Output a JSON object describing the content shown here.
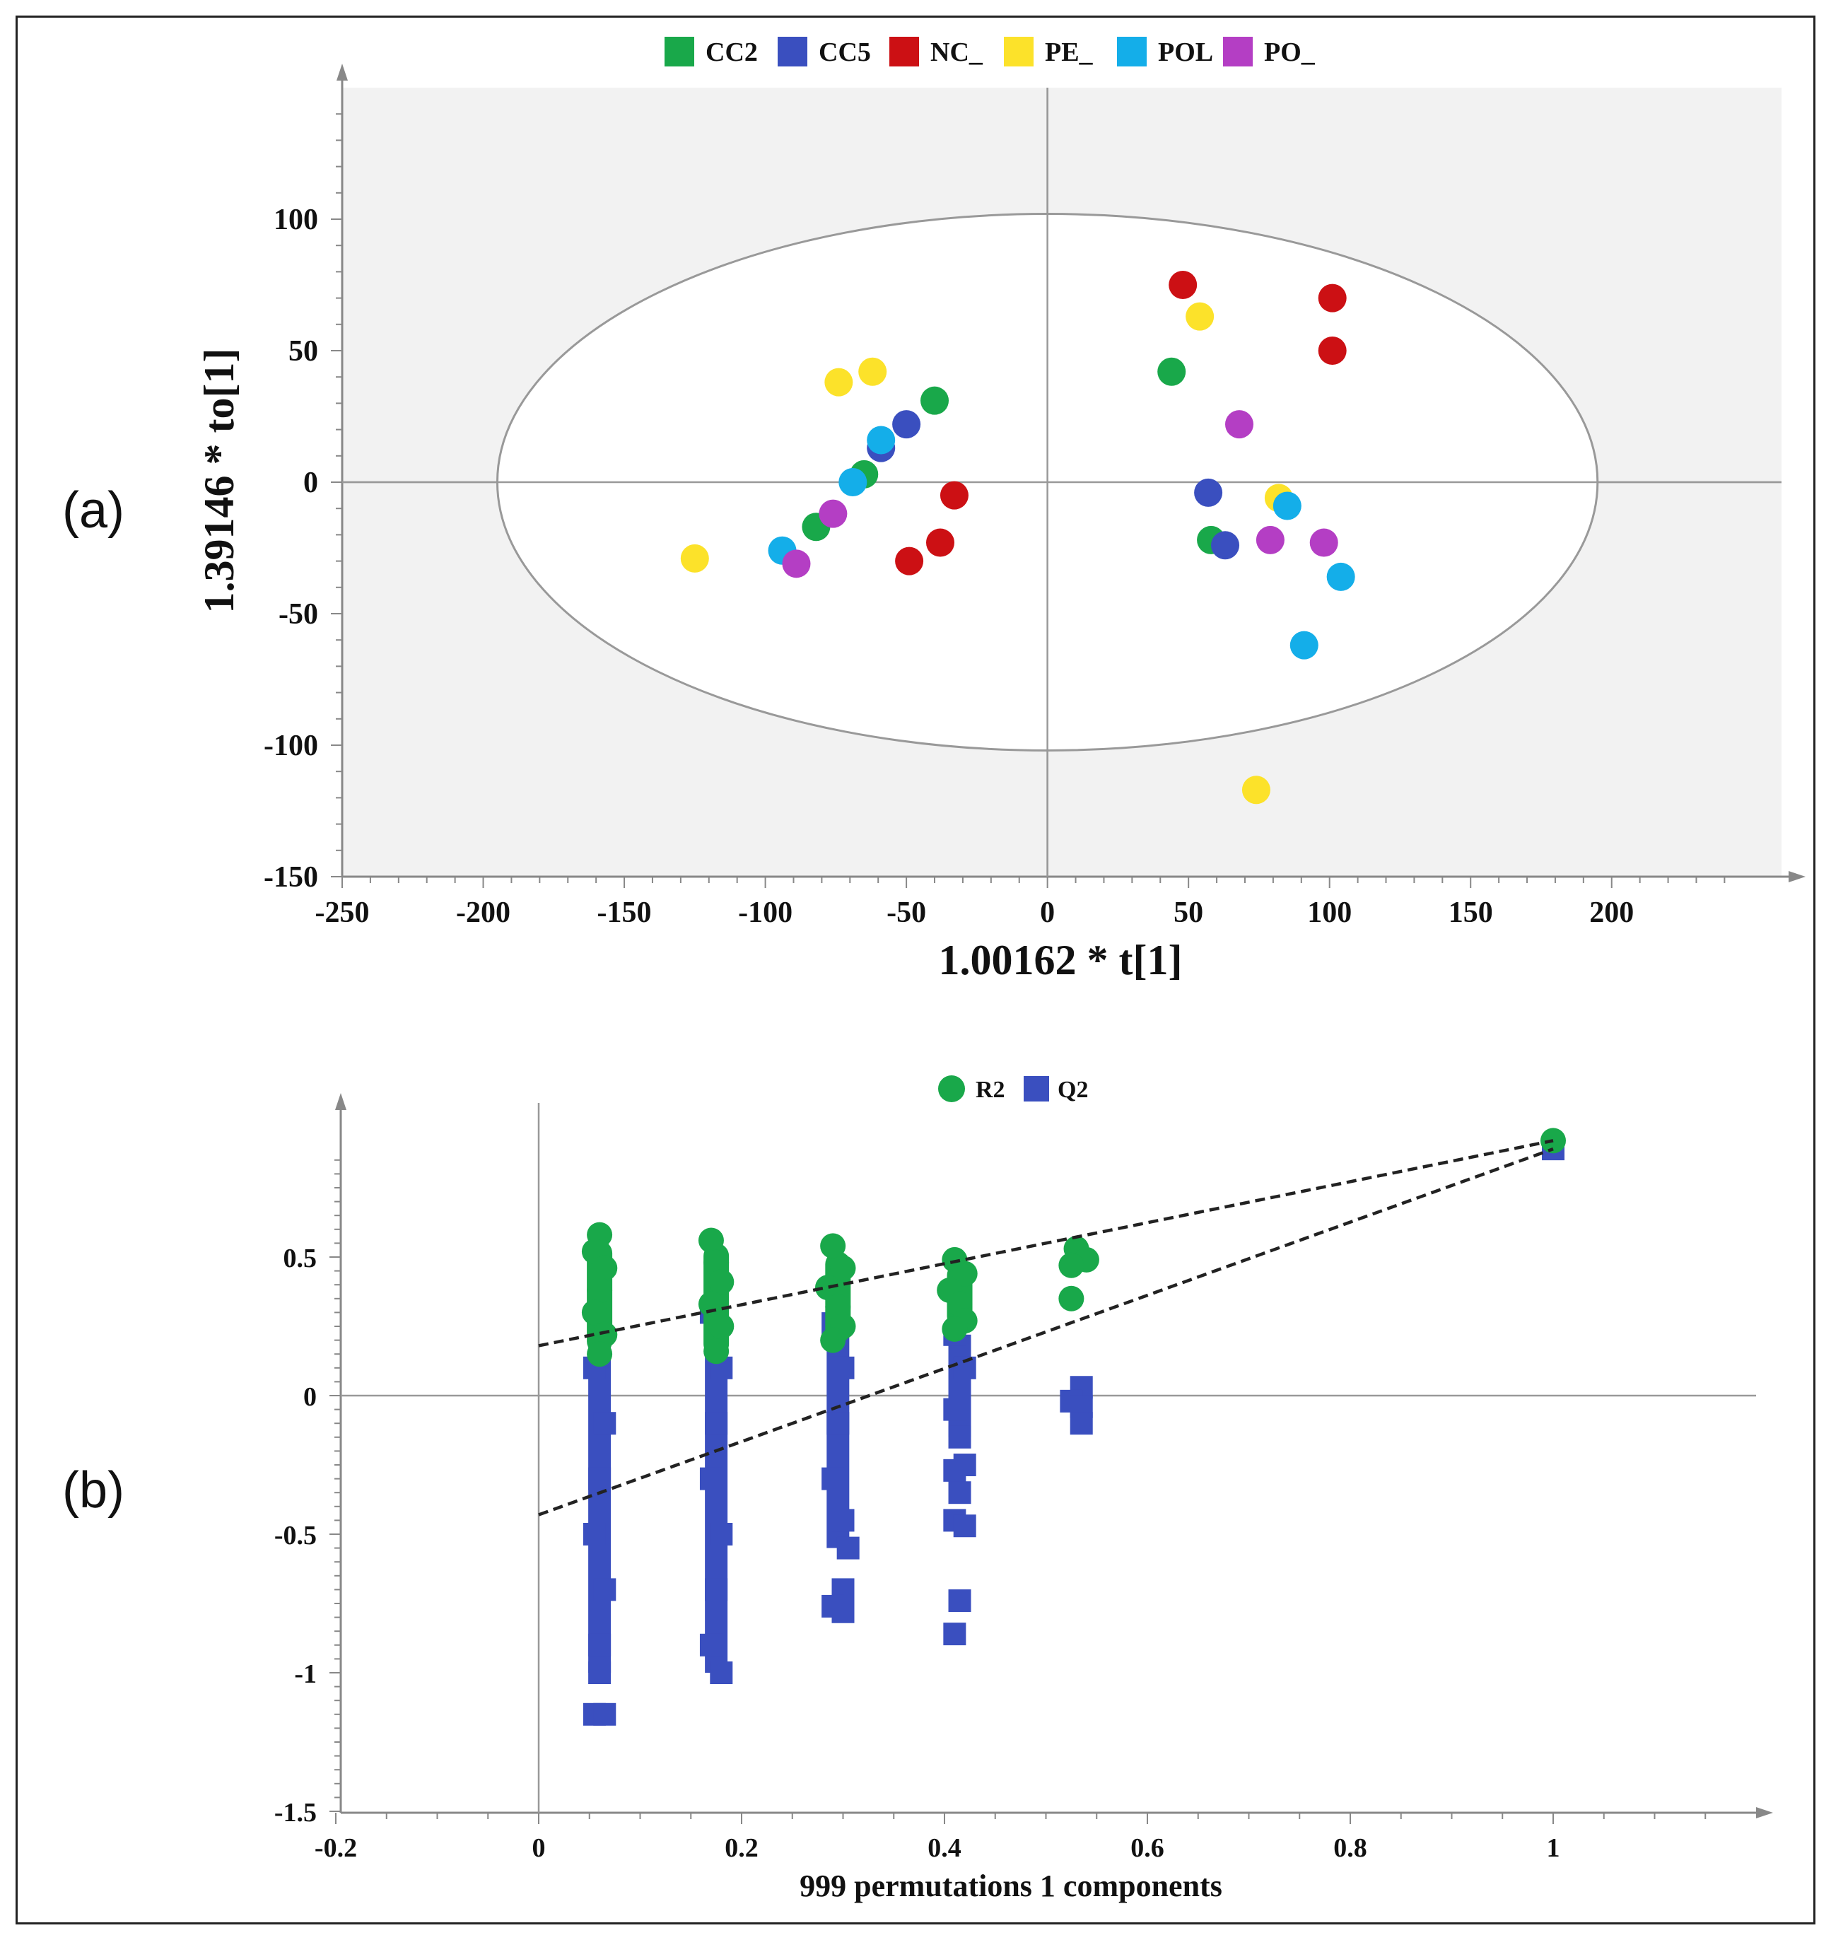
{
  "chart_data": [
    {
      "type": "scatter",
      "panel_label": "(a)",
      "xlabel": "1.00162 * t[1]",
      "ylabel": "1.39146 * to[1]",
      "xlim": [
        -250,
        250
      ],
      "ylim": [
        -150,
        150
      ],
      "xticks": [
        -250,
        -200,
        -150,
        -100,
        -50,
        0,
        50,
        100,
        150,
        200
      ],
      "yticks": [
        -150,
        -100,
        -50,
        0,
        50,
        100
      ],
      "legend_position": "top-center",
      "grid": false,
      "background_color": "#f2f2f2",
      "ellipse": {
        "cx": 0,
        "cy": 0,
        "rx": 195,
        "ry": 102
      },
      "series": [
        {
          "name": "CC2",
          "color": "#19a84a",
          "points": [
            [
              -40,
              31
            ],
            [
              -65,
              3
            ],
            [
              -82,
              -17
            ],
            [
              44,
              42
            ],
            [
              58,
              -22
            ]
          ]
        },
        {
          "name": "CC5",
          "color": "#3a4fbf",
          "points": [
            [
              -50,
              22
            ],
            [
              -59,
              13
            ],
            [
              57,
              -4
            ],
            [
              63,
              -24
            ]
          ]
        },
        {
          "name": "NC_",
          "color": "#cc1014",
          "points": [
            [
              -33,
              -5
            ],
            [
              -38,
              -23
            ],
            [
              -49,
              -30
            ],
            [
              48,
              75
            ],
            [
              101,
              70
            ],
            [
              101,
              50
            ]
          ]
        },
        {
          "name": "PE_",
          "color": "#fce22a",
          "points": [
            [
              -74,
              38
            ],
            [
              -62,
              42
            ],
            [
              -125,
              -29
            ],
            [
              54,
              63
            ],
            [
              82,
              -6
            ],
            [
              74,
              -117
            ]
          ]
        },
        {
          "name": "POL",
          "color": "#14aee9",
          "points": [
            [
              -59,
              16
            ],
            [
              -69,
              0
            ],
            [
              -94,
              -26
            ],
            [
              85,
              -9
            ],
            [
              104,
              -36
            ],
            [
              91,
              -62
            ]
          ]
        },
        {
          "name": "PO_",
          "color": "#b43ec4",
          "points": [
            [
              -76,
              -12
            ],
            [
              -89,
              -31
            ],
            [
              68,
              22
            ],
            [
              79,
              -22
            ],
            [
              98,
              -23
            ]
          ]
        }
      ]
    },
    {
      "type": "scatter",
      "panel_label": "(b)",
      "xlabel": "999 permutations 1 components",
      "ylabel": "",
      "xlim": [
        -0.2,
        1.2
      ],
      "ylim": [
        -1.5,
        0.9
      ],
      "xticks": [
        -0.2,
        0,
        0.2,
        0.4,
        0.6,
        0.8,
        1
      ],
      "yticks": [
        -1.5,
        -1,
        -0.5,
        0,
        0.5
      ],
      "legend_position": "top-center",
      "grid": false,
      "background_color": "#ffffff",
      "series": [
        {
          "name": "R2",
          "color": "#19a84a",
          "marker": "circle",
          "points": [
            [
              0.06,
              0.58
            ],
            [
              0.055,
              0.52
            ],
            [
              0.065,
              0.46
            ],
            [
              0.06,
              0.38
            ],
            [
              0.055,
              0.3
            ],
            [
              0.065,
              0.22
            ],
            [
              0.06,
              0.15
            ],
            [
              0.17,
              0.56
            ],
            [
              0.175,
              0.48
            ],
            [
              0.18,
              0.41
            ],
            [
              0.17,
              0.33
            ],
            [
              0.18,
              0.25
            ],
            [
              0.175,
              0.16
            ],
            [
              0.29,
              0.54
            ],
            [
              0.3,
              0.46
            ],
            [
              0.285,
              0.39
            ],
            [
              0.295,
              0.32
            ],
            [
              0.3,
              0.25
            ],
            [
              0.29,
              0.2
            ],
            [
              0.41,
              0.49
            ],
            [
              0.42,
              0.44
            ],
            [
              0.405,
              0.38
            ],
            [
              0.415,
              0.33
            ],
            [
              0.42,
              0.27
            ],
            [
              0.41,
              0.24
            ],
            [
              0.53,
              0.53
            ],
            [
              0.54,
              0.49
            ],
            [
              0.525,
              0.47
            ],
            [
              0.525,
              0.35
            ],
            [
              1.0,
              0.92
            ]
          ],
          "regression_intercept": 0.18,
          "regression_end": [
            1.0,
            0.92
          ]
        },
        {
          "name": "Q2",
          "color": "#3a4fbf",
          "marker": "square",
          "points": [
            [
              0.06,
              0.22
            ],
            [
              0.055,
              0.1
            ],
            [
              0.065,
              -0.1
            ],
            [
              0.06,
              -0.3
            ],
            [
              0.055,
              -0.5
            ],
            [
              0.065,
              -0.7
            ],
            [
              0.06,
              -0.9
            ],
            [
              0.06,
              -1.0
            ],
            [
              0.055,
              -1.15
            ],
            [
              0.065,
              -1.15
            ],
            [
              0.17,
              0.3
            ],
            [
              0.18,
              0.1
            ],
            [
              0.175,
              -0.1
            ],
            [
              0.17,
              -0.3
            ],
            [
              0.18,
              -0.5
            ],
            [
              0.175,
              -0.7
            ],
            [
              0.17,
              -0.9
            ],
            [
              0.18,
              -1.0
            ],
            [
              0.29,
              0.26
            ],
            [
              0.3,
              0.1
            ],
            [
              0.295,
              -0.1
            ],
            [
              0.29,
              -0.3
            ],
            [
              0.3,
              -0.45
            ],
            [
              0.305,
              -0.55
            ],
            [
              0.3,
              -0.7
            ],
            [
              0.29,
              -0.76
            ],
            [
              0.3,
              -0.78
            ],
            [
              0.41,
              0.22
            ],
            [
              0.42,
              0.1
            ],
            [
              0.41,
              -0.05
            ],
            [
              0.415,
              -0.15
            ],
            [
              0.42,
              -0.25
            ],
            [
              0.41,
              -0.27
            ],
            [
              0.415,
              -0.35
            ],
            [
              0.41,
              -0.45
            ],
            [
              0.42,
              -0.47
            ],
            [
              0.415,
              -0.74
            ],
            [
              0.41,
              -0.86
            ],
            [
              0.535,
              0.03
            ],
            [
              0.525,
              -0.02
            ],
            [
              0.535,
              -0.04
            ],
            [
              0.535,
              -0.1
            ],
            [
              1.0,
              0.89
            ]
          ],
          "regression_intercept": -0.43,
          "regression_end": [
            1.0,
            0.89
          ]
        }
      ]
    }
  ]
}
